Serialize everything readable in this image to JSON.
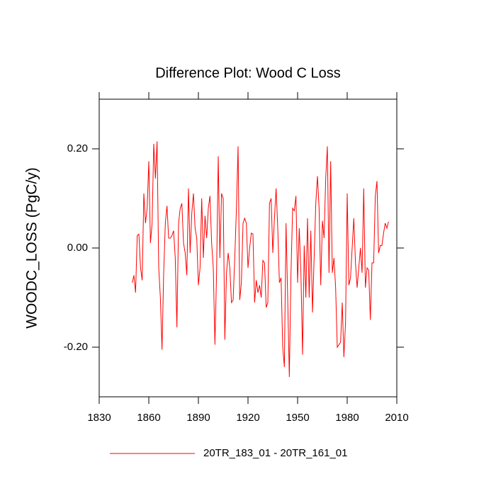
{
  "chart_data": {
    "type": "line",
    "title": "Difference Plot: Wood C Loss",
    "y_label": "WOODC_LOSS  (PgC/y)",
    "x": [
      1850,
      1851,
      1852,
      1853,
      1854,
      1855,
      1856,
      1857,
      1858,
      1859,
      1860,
      1861,
      1862,
      1863,
      1864,
      1865,
      1866,
      1867,
      1868,
      1869,
      1870,
      1871,
      1872,
      1873,
      1874,
      1875,
      1876,
      1877,
      1878,
      1879,
      1880,
      1881,
      1882,
      1883,
      1884,
      1885,
      1886,
      1887,
      1888,
      1889,
      1890,
      1891,
      1892,
      1893,
      1894,
      1895,
      1896,
      1897,
      1898,
      1899,
      1900,
      1901,
      1902,
      1903,
      1904,
      1905,
      1906,
      1907,
      1908,
      1909,
      1910,
      1911,
      1912,
      1913,
      1914,
      1915,
      1916,
      1917,
      1918,
      1919,
      1920,
      1921,
      1922,
      1923,
      1924,
      1925,
      1926,
      1927,
      1928,
      1929,
      1930,
      1931,
      1932,
      1933,
      1934,
      1935,
      1936,
      1937,
      1938,
      1939,
      1940,
      1941,
      1942,
      1943,
      1944,
      1945,
      1946,
      1947,
      1948,
      1949,
      1950,
      1951,
      1952,
      1953,
      1954,
      1955,
      1956,
      1957,
      1958,
      1959,
      1960,
      1961,
      1962,
      1963,
      1964,
      1965,
      1966,
      1967,
      1968,
      1969,
      1970,
      1971,
      1972,
      1973,
      1974,
      1975,
      1976,
      1977,
      1978,
      1979,
      1980,
      1981,
      1982,
      1983,
      1984,
      1985,
      1986,
      1987,
      1988,
      1989,
      1990,
      1991,
      1992,
      1993,
      1994,
      1995,
      1996,
      1997,
      1998,
      1999,
      2000,
      2001,
      2002,
      2003,
      2004,
      2005
    ],
    "series": [
      {
        "name": "20TR_183_01 - 20TR_161_01",
        "color": "#ff0000",
        "values": [
          -0.07,
          -0.055,
          -0.09,
          0.025,
          0.028,
          -0.04,
          -0.065,
          0.11,
          0.05,
          0.08,
          0.175,
          0.01,
          0.05,
          0.21,
          0.14,
          0.215,
          -0.04,
          -0.1,
          -0.205,
          -0.05,
          0.05,
          0.085,
          0.02,
          0.02,
          0.025,
          0.035,
          -0.02,
          -0.16,
          0.05,
          0.08,
          0.09,
          0.01,
          -0.01,
          -0.055,
          0.12,
          -0.01,
          0.07,
          0.11,
          0.04,
          0.02,
          -0.075,
          -0.04,
          0.1,
          -0.02,
          0.065,
          0.02,
          0.08,
          0.105,
          0.01,
          -0.04,
          -0.195,
          -0.05,
          0.185,
          -0.02,
          0.11,
          0.1,
          -0.185,
          -0.05,
          -0.01,
          -0.04,
          -0.11,
          -0.105,
          -0.02,
          0.08,
          0.205,
          -0.105,
          -0.07,
          0.05,
          0.06,
          0.05,
          -0.04,
          0,
          0.03,
          0.028,
          -0.11,
          -0.065,
          -0.09,
          -0.075,
          -0.1,
          -0.025,
          -0.03,
          -0.12,
          -0.11,
          0.09,
          0.1,
          -0.01,
          0.06,
          0.12,
          0.04,
          -0.07,
          -0.06,
          -0.2,
          -0.24,
          0.05,
          -0.1,
          -0.26,
          -0.05,
          0.08,
          0.075,
          0.105,
          -0.07,
          0.04,
          -0.05,
          -0.215,
          0.005,
          -0.1,
          0.06,
          -0.1,
          0.035,
          -0.13,
          -0.02,
          0.09,
          0.145,
          0.08,
          -0.075,
          0.055,
          0.02,
          0.14,
          0.205,
          -0.05,
          0.175,
          -0.05,
          -0.02,
          -0.08,
          -0.2,
          -0.195,
          -0.19,
          -0.11,
          -0.22,
          -0.15,
          0.11,
          -0.075,
          -0.06,
          0,
          0.06,
          -0.03,
          -0.08,
          -0.04,
          0,
          -0.05,
          0.12,
          -0.08,
          -0.04,
          -0.045,
          -0.145,
          -0.03,
          -0.03,
          0.105,
          0.135,
          -0.01,
          0.005,
          0.005,
          0.03,
          0.05,
          0.04,
          0.053
        ]
      }
    ],
    "xlim": [
      1830,
      2010
    ],
    "xticks": [
      1830,
      1860,
      1890,
      1920,
      1950,
      1980,
      2010
    ],
    "ylim": [
      -0.3,
      0.3
    ],
    "yticks": [
      {
        "value": -0.2,
        "label": "-0.20"
      },
      {
        "value": 0,
        "label": "0.00"
      },
      {
        "value": 0.2,
        "label": "0.20"
      }
    ],
    "legend": "bottom"
  }
}
